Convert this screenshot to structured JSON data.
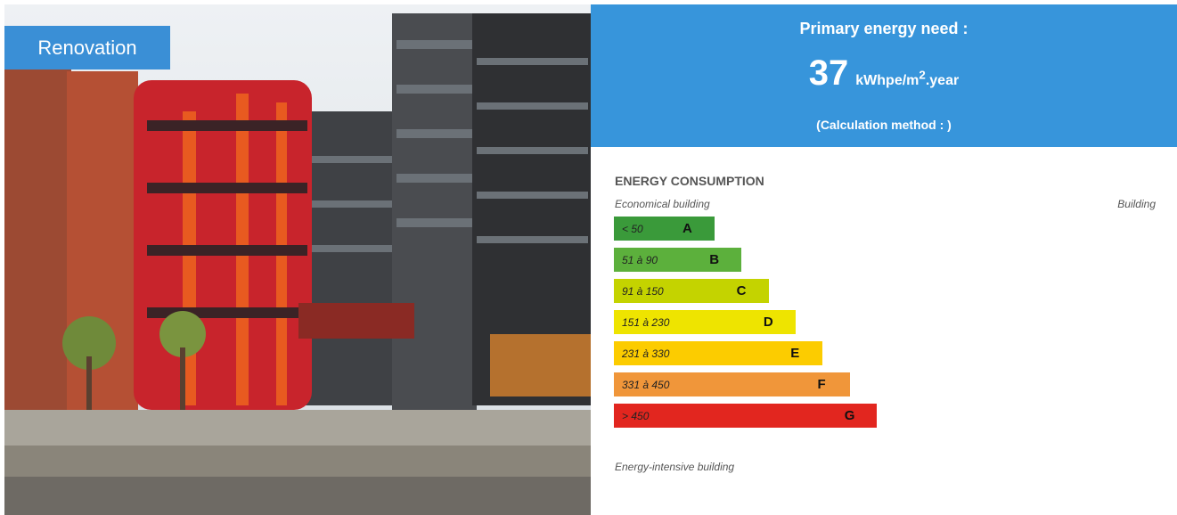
{
  "badge": "Renovation",
  "primary_energy": {
    "title": "Primary energy need :",
    "value": "37",
    "unit": {
      "base": "kWhpe/m",
      "sup": "2",
      "suffix": ".year"
    },
    "method": "(Calculation method : )"
  },
  "energy_consumption": {
    "title": "ENERGY CONSUMPTION",
    "top_left": "Economical building",
    "top_right": "Building",
    "bottom": "Energy-intensive building",
    "ratings": [
      {
        "range": "< 50",
        "letter": "A",
        "color": "#3a9a3a"
      },
      {
        "range": "51 à 90",
        "letter": "B",
        "color": "#5cb03c"
      },
      {
        "range": "91 à 150",
        "letter": "C",
        "color": "#c4d300"
      },
      {
        "range": "151 à 230",
        "letter": "D",
        "color": "#eee400"
      },
      {
        "range": "231 à 330",
        "letter": "E",
        "color": "#fccc00"
      },
      {
        "range": "331 à 450",
        "letter": "F",
        "color": "#f0963a"
      },
      {
        "range": "> 450",
        "letter": "G",
        "color": "#e2261f"
      }
    ]
  }
}
